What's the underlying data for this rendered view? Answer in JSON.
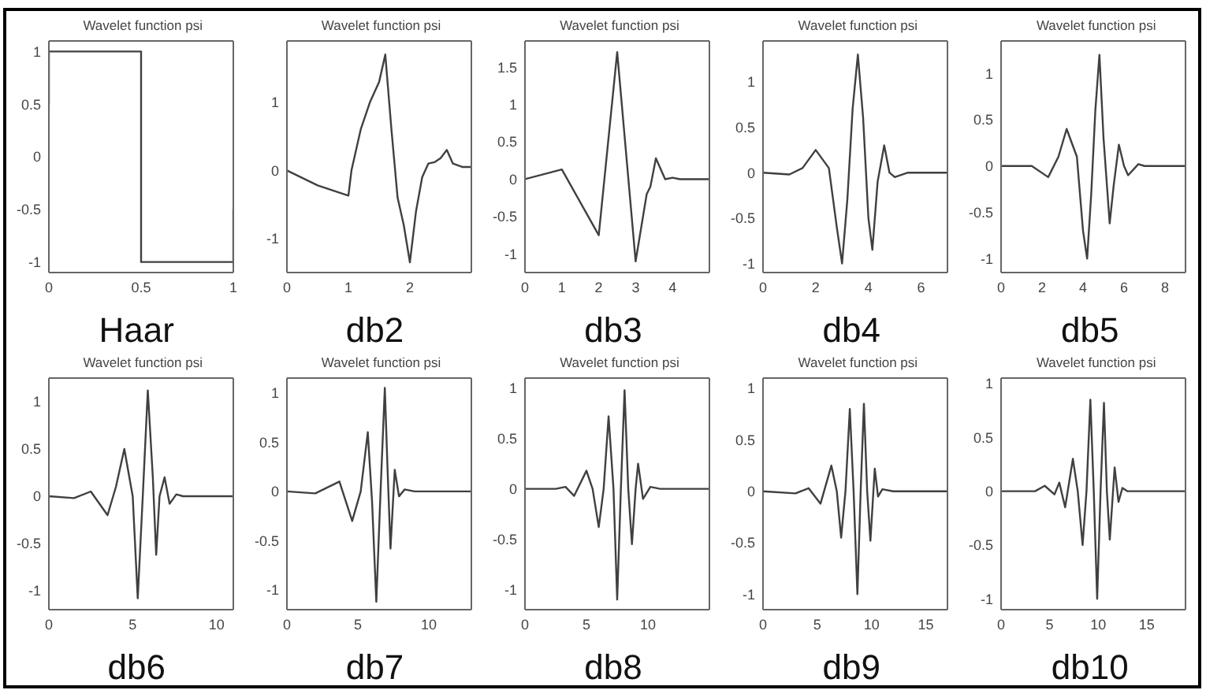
{
  "chart_data": [
    {
      "type": "line",
      "title": "Wavelet function psi",
      "xlabel": "Haar",
      "color": "#404040",
      "xlim": [
        0,
        1
      ],
      "xticks": [
        0,
        0.5,
        1
      ],
      "ylim": [
        -1.1,
        1.1
      ],
      "yticks": [
        -1,
        -0.5,
        0,
        0.5,
        1
      ],
      "x": [
        0,
        0,
        0.5,
        0.5,
        1,
        1
      ],
      "values": [
        0.5,
        1,
        1,
        -1,
        -1,
        -0.5
      ]
    },
    {
      "type": "line",
      "title": "Wavelet function psi",
      "xlabel": "db2",
      "color": "#404040",
      "xlim": [
        0,
        3
      ],
      "xticks": [
        0,
        1,
        2
      ],
      "ylim": [
        -1.5,
        1.9
      ],
      "yticks": [
        -1,
        0,
        1
      ],
      "x": [
        0,
        0.5,
        1,
        1.05,
        1.2,
        1.35,
        1.5,
        1.6,
        1.7,
        1.8,
        1.9,
        2,
        2.1,
        2.2,
        2.3,
        2.4,
        2.5,
        2.6,
        2.7,
        2.85,
        3
      ],
      "values": [
        0,
        -0.22,
        -0.37,
        0,
        0.6,
        1,
        1.3,
        1.7,
        0.6,
        -0.4,
        -0.8,
        -1.35,
        -0.6,
        -0.1,
        0.1,
        0.12,
        0.18,
        0.3,
        0.1,
        0.05,
        0.05
      ]
    },
    {
      "type": "line",
      "title": "Wavelet function psi",
      "xlabel": "db3",
      "color": "#404040",
      "xlim": [
        0,
        5
      ],
      "xticks": [
        0,
        1,
        2,
        3,
        4
      ],
      "ylim": [
        -1.25,
        1.85
      ],
      "yticks": [
        -1,
        -0.5,
        0,
        0.5,
        1,
        1.5
      ],
      "x": [
        0,
        1,
        2,
        2.5,
        3,
        3.3,
        3.4,
        3.55,
        3.8,
        4,
        4.2,
        5
      ],
      "values": [
        0,
        0.13,
        -0.75,
        1.7,
        -1.1,
        -0.2,
        -0.1,
        0.28,
        0,
        0.02,
        0,
        0
      ]
    },
    {
      "type": "line",
      "title": "Wavelet function psi",
      "xlabel": "db4",
      "color": "#404040",
      "xlim": [
        0,
        7
      ],
      "xticks": [
        0,
        2,
        4,
        6
      ],
      "ylim": [
        -1.1,
        1.45
      ],
      "yticks": [
        -1,
        -0.5,
        0,
        0.5,
        1
      ],
      "x": [
        0,
        1,
        1.5,
        2,
        2.5,
        2.8,
        3,
        3.2,
        3.4,
        3.6,
        3.8,
        4,
        4.15,
        4.35,
        4.6,
        4.8,
        5,
        5.5,
        7
      ],
      "values": [
        0,
        -0.02,
        0.05,
        0.25,
        0.05,
        -0.6,
        -1,
        -0.3,
        0.7,
        1.3,
        0.6,
        -0.5,
        -0.85,
        -0.1,
        0.3,
        0,
        -0.05,
        0,
        0
      ]
    },
    {
      "type": "line",
      "title": "Wavelet function psi",
      "xlabel": "db5",
      "color": "#404040",
      "xlim": [
        0,
        9
      ],
      "xticks": [
        0,
        2,
        4,
        6,
        8
      ],
      "ylim": [
        -1.15,
        1.35
      ],
      "yticks": [
        -1,
        -0.5,
        0,
        0.5,
        1
      ],
      "x": [
        0,
        1.5,
        2.3,
        2.8,
        3.2,
        3.7,
        4,
        4.2,
        4.4,
        4.6,
        4.8,
        5,
        5.3,
        5.5,
        5.75,
        6,
        6.2,
        6.7,
        7,
        9
      ],
      "values": [
        0,
        0,
        -0.12,
        0.1,
        0.4,
        0.1,
        -0.7,
        -1,
        -0.3,
        0.6,
        1.2,
        0.3,
        -0.62,
        -0.2,
        0.23,
        0,
        -0.1,
        0.02,
        0,
        0
      ]
    },
    {
      "type": "line",
      "title": "Wavelet function psi",
      "xlabel": "db6",
      "color": "#404040",
      "xlim": [
        0,
        11
      ],
      "xticks": [
        0,
        5,
        10
      ],
      "ylim": [
        -1.2,
        1.25
      ],
      "yticks": [
        -1,
        -0.5,
        0,
        0.5,
        1
      ],
      "x": [
        0,
        1.5,
        2.5,
        3.5,
        4,
        4.5,
        5,
        5.3,
        5.6,
        5.9,
        6.2,
        6.4,
        6.6,
        6.9,
        7.2,
        7.6,
        8,
        11
      ],
      "values": [
        0,
        -0.02,
        0.05,
        -0.2,
        0.1,
        0.5,
        0,
        -1.08,
        0,
        1.12,
        0.2,
        -0.62,
        0,
        0.2,
        -0.08,
        0.02,
        0,
        0
      ]
    },
    {
      "type": "line",
      "title": "Wavelet function psi",
      "xlabel": "db7",
      "color": "#404040",
      "xlim": [
        0,
        13
      ],
      "xticks": [
        0,
        5,
        10
      ],
      "ylim": [
        -1.2,
        1.15
      ],
      "yticks": [
        -1,
        -0.5,
        0,
        0.5,
        1
      ],
      "x": [
        0,
        2,
        3.7,
        4.6,
        5.2,
        5.7,
        6,
        6.3,
        6.6,
        6.9,
        7.1,
        7.3,
        7.6,
        7.9,
        8.3,
        9,
        13
      ],
      "values": [
        0,
        -0.02,
        0.1,
        -0.3,
        0,
        0.6,
        -0.1,
        -1.12,
        0,
        1.05,
        0.2,
        -0.58,
        0.22,
        -0.05,
        0.02,
        0,
        0
      ]
    },
    {
      "type": "line",
      "title": "Wavelet function psi",
      "xlabel": "db8",
      "color": "#404040",
      "xlim": [
        0,
        15
      ],
      "xticks": [
        0,
        5,
        10
      ],
      "ylim": [
        -1.2,
        1.1
      ],
      "yticks": [
        -1,
        -0.5,
        0,
        0.5,
        1
      ],
      "x": [
        0,
        2.5,
        3.3,
        4,
        5,
        5.5,
        6,
        6.4,
        6.8,
        7.2,
        7.5,
        7.8,
        8.1,
        8.4,
        8.7,
        9,
        9.2,
        9.6,
        10.2,
        11,
        15
      ],
      "values": [
        0,
        0,
        0.02,
        -0.07,
        0.18,
        0,
        -0.38,
        0,
        0.72,
        0,
        -1.1,
        0,
        0.98,
        0,
        -0.55,
        0,
        0.25,
        -0.1,
        0.02,
        0,
        0
      ]
    },
    {
      "type": "line",
      "title": "Wavelet function psi",
      "xlabel": "db9",
      "color": "#404040",
      "xlim": [
        0,
        17
      ],
      "xticks": [
        0,
        5,
        10,
        15
      ],
      "ylim": [
        -1.15,
        1.1
      ],
      "yticks": [
        -1,
        -0.5,
        0,
        0.5,
        1
      ],
      "x": [
        0,
        3,
        4.2,
        5.3,
        6.3,
        6.8,
        7.2,
        7.6,
        8,
        8.35,
        8.7,
        9,
        9.3,
        9.6,
        9.9,
        10.3,
        10.6,
        11,
        12,
        17
      ],
      "values": [
        0,
        -0.02,
        0.03,
        -0.12,
        0.25,
        0,
        -0.45,
        0,
        0.8,
        0,
        -1,
        0,
        0.85,
        0,
        -0.48,
        0.22,
        -0.05,
        0.02,
        0,
        0
      ]
    },
    {
      "type": "line",
      "title": "Wavelet function psi",
      "xlabel": "db10",
      "color": "#404040",
      "xlim": [
        0,
        19
      ],
      "xticks": [
        0,
        5,
        10,
        15
      ],
      "ylim": [
        -1.1,
        1.05
      ],
      "yticks": [
        -1,
        -0.5,
        0,
        0.5,
        1
      ],
      "x": [
        0,
        3.5,
        4.5,
        5.5,
        6,
        6.6,
        7.4,
        7.9,
        8.4,
        8.8,
        9.2,
        9.55,
        9.9,
        10.25,
        10.6,
        10.9,
        11.2,
        11.7,
        12.1,
        12.5,
        13,
        19
      ],
      "values": [
        0,
        0,
        0.05,
        -0.03,
        0.08,
        -0.15,
        0.3,
        0,
        -0.5,
        0,
        0.85,
        0,
        -1,
        0,
        0.82,
        0,
        -0.45,
        0.22,
        -0.1,
        0.03,
        0,
        0
      ]
    }
  ]
}
